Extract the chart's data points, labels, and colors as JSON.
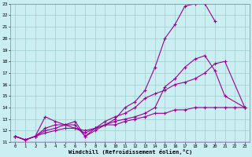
{
  "xlabel": "Windchill (Refroidissement éolien,°C)",
  "bg_color": "#cbeef3",
  "grid_color": "#a0cccc",
  "line_color": "#990099",
  "xlim_min": -0.5,
  "xlim_max": 23.5,
  "ylim_min": 11,
  "ylim_max": 23,
  "xticks": [
    0,
    1,
    2,
    3,
    4,
    5,
    6,
    7,
    8,
    9,
    10,
    11,
    12,
    13,
    14,
    15,
    16,
    17,
    18,
    19,
    20,
    21,
    22,
    23
  ],
  "yticks": [
    11,
    12,
    13,
    14,
    15,
    16,
    17,
    18,
    19,
    20,
    21,
    22,
    23
  ],
  "line1_x": [
    0,
    1,
    2,
    3,
    4,
    5,
    6,
    7,
    8,
    9,
    10,
    11,
    12,
    13,
    14,
    15,
    16,
    17,
    18,
    19,
    20,
    21,
    22,
    23
  ],
  "line1_y": [
    11.5,
    11.2,
    11.5,
    13.2,
    12.8,
    12.5,
    12.8,
    11.5,
    12.0,
    12.5,
    13.0,
    14.0,
    14.5,
    15.5,
    17.5,
    20.0,
    21.2,
    22.8,
    23.0,
    23.0,
    21.5,
    null,
    null,
    14.0
  ],
  "line2_x": [
    0,
    1,
    2,
    3,
    4,
    5,
    6,
    7,
    8,
    9,
    10,
    11,
    12,
    13,
    14,
    15,
    16,
    17,
    18,
    19,
    20,
    21,
    23
  ],
  "line2_y": [
    11.5,
    11.2,
    11.5,
    12.2,
    12.5,
    12.5,
    12.5,
    11.5,
    12.2,
    12.5,
    12.8,
    13.0,
    13.2,
    13.5,
    14.0,
    15.8,
    16.5,
    17.5,
    18.2,
    18.5,
    17.2,
    15.0,
    14.0
  ],
  "line3_x": [
    0,
    1,
    2,
    3,
    4,
    5,
    6,
    7,
    8,
    9,
    10,
    11,
    12,
    13,
    14,
    15,
    16,
    17,
    18,
    19,
    20,
    21,
    23
  ],
  "line3_y": [
    11.5,
    11.2,
    11.5,
    12.0,
    12.2,
    12.5,
    12.2,
    11.8,
    12.2,
    12.8,
    13.2,
    13.5,
    14.0,
    14.8,
    15.2,
    15.5,
    16.0,
    16.2,
    16.5,
    17.0,
    17.8,
    18.0,
    14.0
  ],
  "line4_x": [
    0,
    1,
    2,
    3,
    4,
    5,
    6,
    7,
    8,
    9,
    10,
    11,
    12,
    13,
    14,
    15,
    16,
    17,
    18,
    19,
    20,
    21,
    22,
    23
  ],
  "line4_y": [
    11.5,
    11.2,
    11.5,
    11.8,
    12.0,
    12.2,
    12.2,
    12.0,
    12.2,
    12.5,
    12.5,
    12.8,
    13.0,
    13.2,
    13.5,
    13.5,
    13.8,
    13.8,
    14.0,
    14.0,
    14.0,
    14.0,
    14.0,
    14.0
  ]
}
